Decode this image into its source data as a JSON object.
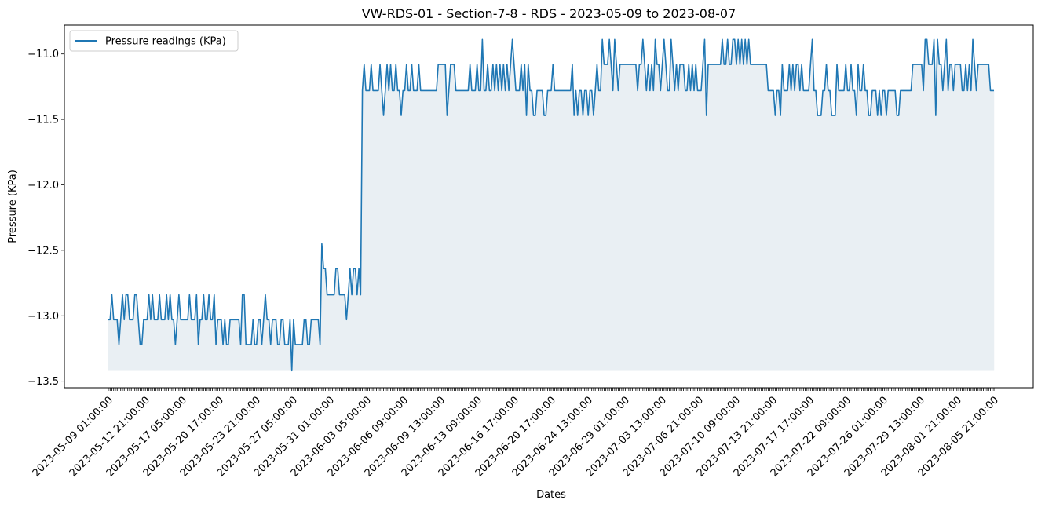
{
  "chart_data": {
    "type": "area",
    "title": "VW-RDS-01 - Section-7-8 - RDS - 2023-05-09 to 2023-08-07",
    "xlabel": "Dates",
    "ylabel": "Pressure (KPa)",
    "ylim": [
      -13.55,
      -10.78
    ],
    "yticks": [
      -13.5,
      -13.0,
      -12.5,
      -12.0,
      -11.5,
      -11.0
    ],
    "grid": false,
    "legend_position": "top-left",
    "colors": {
      "line": "#1f77b4",
      "fill": "#e9eff3"
    },
    "fill_baseline": -13.42,
    "xtick_labels": [
      "2023-05-09 01:00:00",
      "2023-05-12 21:00:00",
      "2023-05-17 05:00:00",
      "2023-05-20 17:00:00",
      "2023-05-23 21:00:00",
      "2023-05-27 05:00:00",
      "2023-05-31 01:00:00",
      "2023-06-03 05:00:00",
      "2023-06-06 09:00:00",
      "2023-06-09 13:00:00",
      "2023-06-13 09:00:00",
      "2023-06-16 17:00:00",
      "2023-06-20 17:00:00",
      "2023-06-24 13:00:00",
      "2023-06-29 01:00:00",
      "2023-07-03 13:00:00",
      "2023-07-06 21:00:00",
      "2023-07-10 09:00:00",
      "2023-07-13 21:00:00",
      "2023-07-17 17:00:00",
      "2023-07-22 09:00:00",
      "2023-07-26 01:00:00",
      "2023-07-29 13:00:00",
      "2023-08-01 21:00:00",
      "2023-08-05 21:00:00"
    ],
    "series": [
      {
        "name": "Pressure readings (KPa)",
        "values": [
          -13.03,
          -13.03,
          -12.84,
          -13.03,
          -13.03,
          -13.03,
          -13.22,
          -13.03,
          -12.84,
          -13.03,
          -12.84,
          -12.84,
          -13.03,
          -13.03,
          -13.03,
          -12.84,
          -12.84,
          -13.03,
          -13.22,
          -13.22,
          -13.03,
          -13.03,
          -13.03,
          -12.84,
          -13.03,
          -12.84,
          -13.03,
          -13.03,
          -13.03,
          -12.84,
          -13.03,
          -13.03,
          -13.03,
          -12.84,
          -13.03,
          -12.84,
          -13.03,
          -13.03,
          -13.22,
          -13.03,
          -12.84,
          -13.03,
          -13.03,
          -13.03,
          -13.03,
          -13.03,
          -12.84,
          -13.03,
          -13.03,
          -13.03,
          -12.84,
          -13.22,
          -13.03,
          -13.03,
          -12.84,
          -13.03,
          -13.03,
          -12.84,
          -13.03,
          -13.03,
          -12.84,
          -13.22,
          -13.03,
          -13.03,
          -13.03,
          -13.22,
          -13.03,
          -13.22,
          -13.22,
          -13.03,
          -13.03,
          -13.03,
          -13.03,
          -13.03,
          -13.03,
          -13.22,
          -12.84,
          -12.84,
          -13.22,
          -13.22,
          -13.22,
          -13.22,
          -13.03,
          -13.22,
          -13.22,
          -13.03,
          -13.03,
          -13.22,
          -13.03,
          -12.84,
          -13.03,
          -13.03,
          -13.22,
          -13.03,
          -13.03,
          -13.03,
          -13.22,
          -13.22,
          -13.03,
          -13.03,
          -13.22,
          -13.22,
          -13.22,
          -13.03,
          -13.42,
          -13.03,
          -13.22,
          -13.22,
          -13.22,
          -13.22,
          -13.22,
          -13.03,
          -13.03,
          -13.22,
          -13.22,
          -13.03,
          -13.03,
          -13.03,
          -13.03,
          -13.03,
          -13.22,
          -12.45,
          -12.64,
          -12.64,
          -12.84,
          -12.84,
          -12.84,
          -12.84,
          -12.84,
          -12.64,
          -12.64,
          -12.84,
          -12.84,
          -12.84,
          -12.84,
          -13.03,
          -12.84,
          -12.64,
          -12.84,
          -12.64,
          -12.64,
          -12.84,
          -12.64,
          -12.84,
          -11.28,
          -11.08,
          -11.28,
          -11.28,
          -11.28,
          -11.08,
          -11.28,
          -11.28,
          -11.28,
          -11.28,
          -11.08,
          -11.28,
          -11.47,
          -11.28,
          -11.08,
          -11.28,
          -11.08,
          -11.28,
          -11.28,
          -11.08,
          -11.28,
          -11.28,
          -11.47,
          -11.28,
          -11.28,
          -11.08,
          -11.28,
          -11.28,
          -11.08,
          -11.28,
          -11.28,
          -11.28,
          -11.08,
          -11.28,
          -11.28,
          -11.28,
          -11.28,
          -11.28,
          -11.28,
          -11.28,
          -11.28,
          -11.28,
          -11.28,
          -11.08,
          -11.08,
          -11.08,
          -11.08,
          -11.08,
          -11.47,
          -11.28,
          -11.08,
          -11.08,
          -11.08,
          -11.28,
          -11.28,
          -11.28,
          -11.28,
          -11.28,
          -11.28,
          -11.28,
          -11.28,
          -11.08,
          -11.28,
          -11.28,
          -11.28,
          -11.08,
          -11.28,
          -11.28,
          -10.89,
          -11.28,
          -11.28,
          -11.08,
          -11.28,
          -11.28,
          -11.08,
          -11.28,
          -11.08,
          -11.28,
          -11.08,
          -11.28,
          -11.08,
          -11.28,
          -11.08,
          -11.28,
          -11.08,
          -10.89,
          -11.08,
          -11.28,
          -11.28,
          -11.28,
          -11.08,
          -11.28,
          -11.08,
          -11.47,
          -11.08,
          -11.28,
          -11.28,
          -11.47,
          -11.47,
          -11.28,
          -11.28,
          -11.28,
          -11.28,
          -11.47,
          -11.47,
          -11.28,
          -11.28,
          -11.28,
          -11.08,
          -11.28,
          -11.28,
          -11.28,
          -11.28,
          -11.28,
          -11.28,
          -11.28,
          -11.28,
          -11.28,
          -11.28,
          -11.08,
          -11.47,
          -11.28,
          -11.47,
          -11.28,
          -11.28,
          -11.47,
          -11.28,
          -11.28,
          -11.47,
          -11.28,
          -11.28,
          -11.47,
          -11.28,
          -11.08,
          -11.28,
          -11.28,
          -10.89,
          -11.08,
          -11.08,
          -11.08,
          -10.89,
          -11.08,
          -11.28,
          -10.89,
          -11.08,
          -11.28,
          -11.08,
          -11.08,
          -11.08,
          -11.08,
          -11.08,
          -11.08,
          -11.08,
          -11.08,
          -11.08,
          -11.08,
          -11.28,
          -11.08,
          -11.08,
          -10.89,
          -11.08,
          -11.28,
          -11.08,
          -11.28,
          -11.08,
          -11.28,
          -10.89,
          -11.08,
          -11.08,
          -11.28,
          -11.08,
          -10.89,
          -11.08,
          -11.28,
          -11.28,
          -10.89,
          -11.08,
          -11.28,
          -11.08,
          -11.28,
          -11.08,
          -11.08,
          -11.08,
          -11.28,
          -11.28,
          -11.08,
          -11.28,
          -11.08,
          -11.28,
          -11.08,
          -11.28,
          -11.28,
          -11.28,
          -11.08,
          -10.89,
          -11.47,
          -11.08,
          -11.08,
          -11.08,
          -11.08,
          -11.08,
          -11.08,
          -11.08,
          -11.08,
          -10.89,
          -11.08,
          -11.08,
          -10.89,
          -11.08,
          -11.08,
          -10.89,
          -10.89,
          -11.08,
          -10.89,
          -11.08,
          -10.89,
          -11.08,
          -10.89,
          -11.08,
          -10.89,
          -11.08,
          -11.08,
          -11.08,
          -11.08,
          -11.08,
          -11.08,
          -11.08,
          -11.08,
          -11.08,
          -11.08,
          -11.28,
          -11.28,
          -11.28,
          -11.28,
          -11.47,
          -11.28,
          -11.28,
          -11.47,
          -11.08,
          -11.28,
          -11.28,
          -11.28,
          -11.08,
          -11.28,
          -11.08,
          -11.28,
          -11.08,
          -11.08,
          -11.28,
          -11.08,
          -11.28,
          -11.28,
          -11.28,
          -11.28,
          -11.08,
          -10.89,
          -11.28,
          -11.28,
          -11.47,
          -11.47,
          -11.47,
          -11.28,
          -11.28,
          -11.08,
          -11.28,
          -11.28,
          -11.47,
          -11.47,
          -11.47,
          -11.08,
          -11.28,
          -11.28,
          -11.28,
          -11.28,
          -11.08,
          -11.28,
          -11.28,
          -11.08,
          -11.28,
          -11.28,
          -11.47,
          -11.08,
          -11.28,
          -11.28,
          -11.08,
          -11.28,
          -11.28,
          -11.47,
          -11.47,
          -11.28,
          -11.28,
          -11.28,
          -11.47,
          -11.28,
          -11.47,
          -11.28,
          -11.28,
          -11.47,
          -11.28,
          -11.28,
          -11.28,
          -11.28,
          -11.28,
          -11.47,
          -11.47,
          -11.28,
          -11.28,
          -11.28,
          -11.28,
          -11.28,
          -11.28,
          -11.28,
          -11.08,
          -11.08,
          -11.08,
          -11.08,
          -11.08,
          -11.08,
          -11.28,
          -10.89,
          -10.89,
          -11.08,
          -11.08,
          -11.08,
          -10.89,
          -11.47,
          -10.89,
          -11.08,
          -11.08,
          -11.28,
          -11.08,
          -10.89,
          -11.28,
          -11.08,
          -11.08,
          -11.28,
          -11.08,
          -11.08,
          -11.08,
          -11.08,
          -11.28,
          -11.28,
          -11.08,
          -11.28,
          -11.08,
          -11.28,
          -10.89,
          -11.08,
          -11.28,
          -11.08,
          -11.08,
          -11.08,
          -11.08,
          -11.08,
          -11.08,
          -11.08,
          -11.28,
          -11.28,
          -11.28
        ]
      }
    ]
  }
}
